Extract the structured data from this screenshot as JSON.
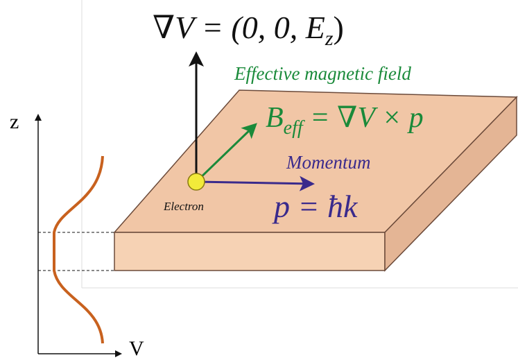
{
  "gradient_formula": {
    "main": "∇V = (0, 0, E",
    "sub": "z",
    "end": ")"
  },
  "field_label": "Effective magnetic field",
  "field_formula": {
    "main": "B",
    "sub": "eff",
    "end": " = ∇V × p"
  },
  "momentum_label": "Momentum",
  "momentum_formula": "p = ħk",
  "electron_label": "Electron",
  "axis_z": "z",
  "axis_v": "V"
}
